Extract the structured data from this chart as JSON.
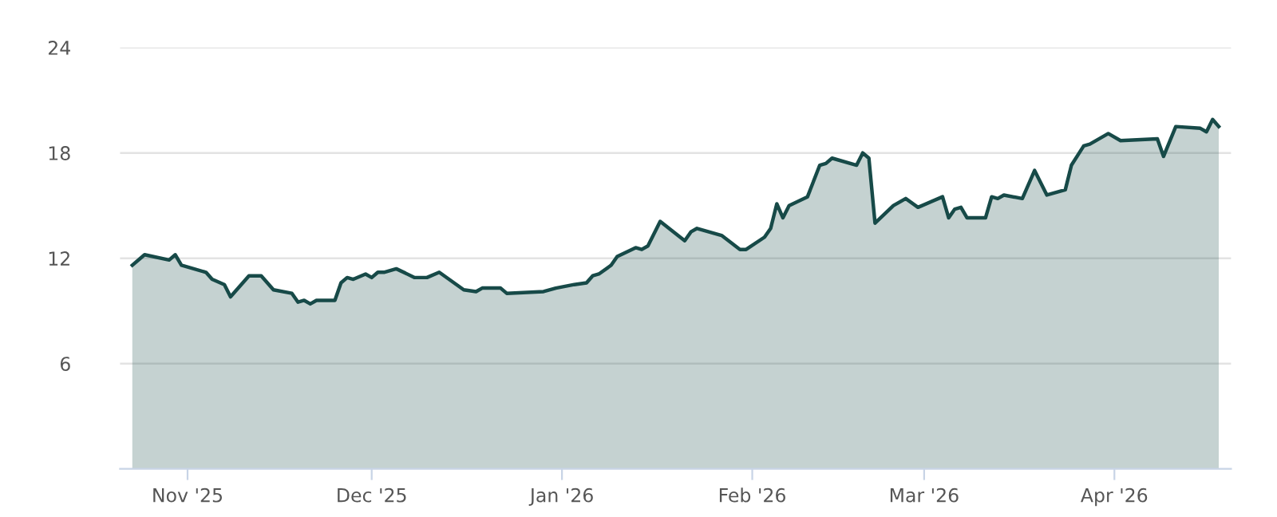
{
  "chart_data": {
    "type": "area",
    "xlim": [
      "2025-10-21",
      "2026-04-20"
    ],
    "ylim": [
      0,
      24
    ],
    "yticks": [
      6,
      12,
      18,
      24
    ],
    "xticks": [
      {
        "value": "2025-11-01",
        "label": "Nov '25"
      },
      {
        "value": "2025-12-01",
        "label": "Dec '25"
      },
      {
        "value": "2026-01-01",
        "label": "Jan '26"
      },
      {
        "value": "2026-02-01",
        "label": "Feb '26"
      },
      {
        "value": "2026-03-01",
        "label": "Mar '26"
      },
      {
        "value": "2026-04-01",
        "label": "Apr '26"
      }
    ],
    "grid": "y",
    "legend": false,
    "x": [
      "2025-10-23",
      "2025-10-25",
      "2025-10-29",
      "2025-10-30",
      "2025-10-31",
      "2025-11-04",
      "2025-11-05",
      "2025-11-07",
      "2025-11-08",
      "2025-11-11",
      "2025-11-13",
      "2025-11-15",
      "2025-11-18",
      "2025-11-19",
      "2025-11-20",
      "2025-11-21",
      "2025-11-22",
      "2025-11-25",
      "2025-11-26",
      "2025-11-27",
      "2025-11-28",
      "2025-11-30",
      "2025-12-01",
      "2025-12-02",
      "2025-12-03",
      "2025-12-05",
      "2025-12-08",
      "2025-12-10",
      "2025-12-12",
      "2025-12-16",
      "2025-12-18",
      "2025-12-19",
      "2025-12-22",
      "2025-12-23",
      "2025-12-29",
      "2025-12-31",
      "2026-01-03",
      "2026-01-05",
      "2026-01-06",
      "2026-01-07",
      "2026-01-09",
      "2026-01-10",
      "2026-01-13",
      "2026-01-14",
      "2026-01-15",
      "2026-01-17",
      "2026-01-21",
      "2026-01-22",
      "2026-01-23",
      "2026-01-27",
      "2026-01-30",
      "2026-01-31",
      "2026-02-03",
      "2026-02-04",
      "2026-02-05",
      "2026-02-06",
      "2026-02-07",
      "2026-02-10",
      "2026-02-12",
      "2026-02-13",
      "2026-02-14",
      "2026-02-18",
      "2026-02-19",
      "2026-02-20",
      "2026-02-21",
      "2026-02-24",
      "2026-02-26",
      "2026-02-28",
      "2026-03-04",
      "2026-03-05",
      "2026-03-06",
      "2026-03-07",
      "2026-03-08",
      "2026-03-11",
      "2026-03-12",
      "2026-03-13",
      "2026-03-14",
      "2026-03-17",
      "2026-03-19",
      "2026-03-21",
      "2026-03-24",
      "2026-03-25",
      "2026-03-27",
      "2026-03-28",
      "2026-03-31",
      "2026-04-02",
      "2026-04-08",
      "2026-04-09",
      "2026-04-11",
      "2026-04-15",
      "2026-04-16",
      "2026-04-17",
      "2026-04-18"
    ],
    "series": [
      {
        "color": "#174a48",
        "values": [
          11.6,
          12.2,
          11.9,
          12.2,
          11.6,
          11.2,
          10.8,
          10.5,
          9.8,
          11.0,
          11.0,
          10.2,
          10.0,
          9.5,
          9.6,
          9.4,
          9.6,
          9.6,
          10.6,
          10.9,
          10.8,
          11.1,
          10.9,
          11.2,
          11.2,
          11.4,
          10.9,
          10.9,
          11.2,
          10.2,
          10.1,
          10.3,
          10.3,
          10.0,
          10.1,
          10.3,
          10.5,
          10.6,
          11.0,
          11.1,
          11.6,
          12.1,
          12.6,
          12.5,
          12.7,
          14.1,
          13.0,
          13.5,
          13.7,
          13.3,
          12.5,
          12.5,
          13.2,
          13.7,
          15.1,
          14.3,
          15.0,
          15.5,
          17.3,
          17.4,
          17.7,
          17.3,
          18.0,
          17.7,
          14.0,
          15.0,
          15.4,
          14.9,
          15.5,
          14.3,
          14.8,
          14.9,
          14.3,
          14.3,
          15.5,
          15.4,
          15.6,
          15.4,
          17.0,
          15.6,
          15.9,
          17.3,
          18.4,
          18.5,
          19.1,
          18.7,
          18.8,
          17.8,
          19.5,
          19.4,
          19.2,
          19.9,
          19.5
        ]
      }
    ]
  }
}
